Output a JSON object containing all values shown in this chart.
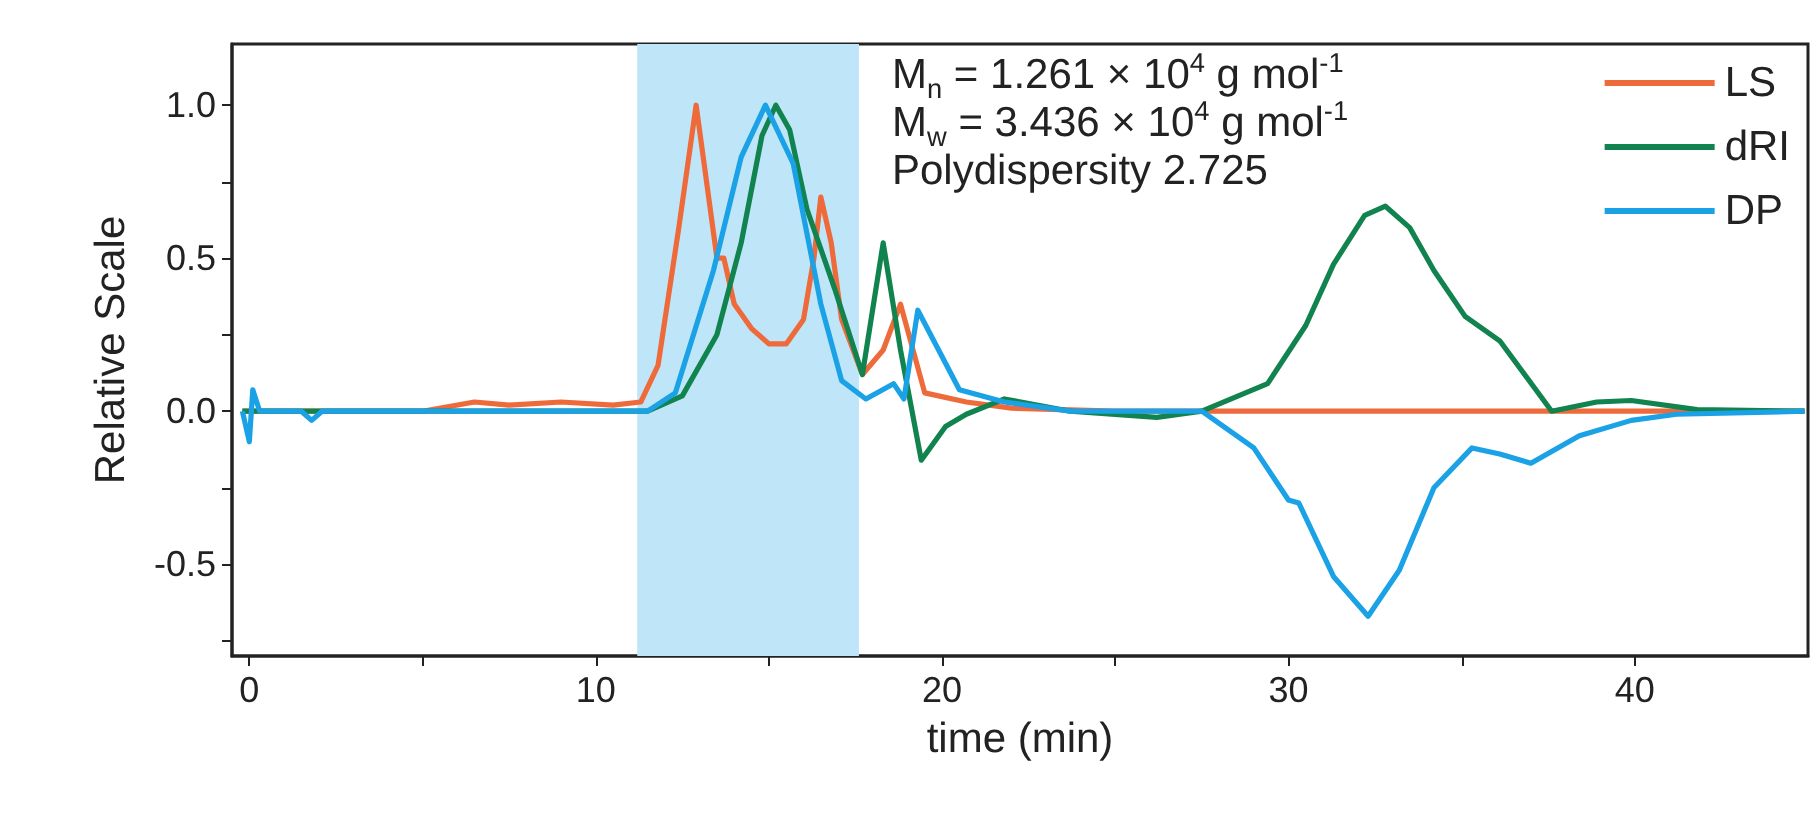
{
  "chart_data": {
    "type": "line",
    "xlabel": "time (min)",
    "ylabel": "Relative Scale",
    "annotations": [
      "M$_{n}$ = 1.261 × 10$^{4}$ g mol$^{-1}$",
      "M$_{w}$ = 3.436 × 10$^{4}$ g mol$^{-1}$",
      "Polydispersity 2.725"
    ],
    "xlim": [
      -0.5,
      45
    ],
    "xticks": [
      0,
      {
        "value": 5,
        "label": null
      },
      10,
      {
        "value": 15,
        "label": null
      },
      20,
      {
        "value": 25,
        "label": null
      },
      30,
      {
        "value": 35,
        "label": null
      },
      40
    ],
    "ylim": [
      -0.8,
      1.2
    ],
    "yticks": [
      {
        "value": -0.75,
        "label": null
      },
      {
        "value": -0.5,
        "label": "-0.5"
      },
      {
        "value": -0.25,
        "label": null
      },
      {
        "value": 0,
        "label": "0.0"
      },
      {
        "value": 0.25,
        "label": null
      },
      {
        "value": 0.5,
        "label": "0.5"
      },
      {
        "value": 0.75,
        "label": null
      },
      {
        "value": 1,
        "label": "1.0"
      }
    ],
    "bands": [
      {
        "axis": "x",
        "from": 11.2,
        "to": 17.6,
        "color": "#bfe6f8"
      }
    ],
    "legend": "top right",
    "grid": false,
    "marker": "none",
    "line_style": "solid",
    "series": [
      {
        "name": "LS",
        "color": "#ef6a3a",
        "x": [
          -0.2,
          2,
          5,
          6.5,
          7.5,
          9,
          10.5,
          11.3,
          11.8,
          12.4,
          12.9,
          13.2,
          13.5,
          13.7,
          14,
          14.5,
          15,
          15.5,
          16,
          16.3,
          16.5,
          16.8,
          17.1,
          17.7,
          18.3,
          18.8,
          19.5,
          20.7,
          22,
          25,
          30,
          35,
          40,
          44.9
        ],
        "values": [
          0,
          0,
          0,
          0.03,
          0.02,
          0.03,
          0.02,
          0.03,
          0.15,
          0.6,
          1.0,
          0.75,
          0.5,
          0.5,
          0.35,
          0.27,
          0.22,
          0.22,
          0.3,
          0.5,
          0.7,
          0.55,
          0.3,
          0.12,
          0.2,
          0.35,
          0.06,
          0.03,
          0.01,
          0,
          0,
          0,
          0,
          0
        ]
      },
      {
        "name": "dRI",
        "color": "#11834f",
        "x": [
          -0.2,
          5,
          11.5,
          12.5,
          13.5,
          14.2,
          14.8,
          15.2,
          15.6,
          16.1,
          16.9,
          17.7,
          18.3,
          18.8,
          19.4,
          20.1,
          20.7,
          21.8,
          23.7,
          26.2,
          27.5,
          29.4,
          30.5,
          31.3,
          32.2,
          32.8,
          33.5,
          34.2,
          35.1,
          36.1,
          37.6,
          38.9,
          39.9,
          41.8,
          44.9
        ],
        "values": [
          0,
          0,
          0,
          0.05,
          0.25,
          0.55,
          0.9,
          1.0,
          0.92,
          0.66,
          0.4,
          0.12,
          0.55,
          0.2,
          -0.16,
          -0.05,
          -0.01,
          0.04,
          0,
          -0.02,
          0,
          0.09,
          0.28,
          0.48,
          0.64,
          0.67,
          0.6,
          0.46,
          0.31,
          0.23,
          0,
          0.03,
          0.035,
          0.005,
          0
        ]
      },
      {
        "name": "DP",
        "color": "#1ba1e6",
        "x": [
          -0.2,
          0,
          0.1,
          0.3,
          0.6,
          1.5,
          1.8,
          2.1,
          5,
          11.5,
          12.3,
          13.4,
          14.2,
          14.9,
          15.7,
          16.5,
          17.1,
          17.8,
          18.6,
          18.9,
          19.3,
          20.5,
          21.8,
          23.7,
          27.5,
          29,
          30,
          30.3,
          31.3,
          32.3,
          33.2,
          34.2,
          35.3,
          36.1,
          37,
          38.4,
          39.9,
          41.2,
          44.9
        ],
        "values": [
          0,
          -0.1,
          0.07,
          0,
          0,
          0,
          -0.03,
          0,
          0,
          0,
          0.06,
          0.46,
          0.83,
          1.0,
          0.81,
          0.35,
          0.1,
          0.04,
          0.09,
          0.04,
          0.33,
          0.07,
          0.03,
          0,
          0,
          -0.12,
          -0.29,
          -0.3,
          -0.54,
          -0.67,
          -0.52,
          -0.25,
          -0.12,
          -0.14,
          -0.17,
          -0.08,
          -0.03,
          -0.01,
          0
        ]
      }
    ]
  }
}
